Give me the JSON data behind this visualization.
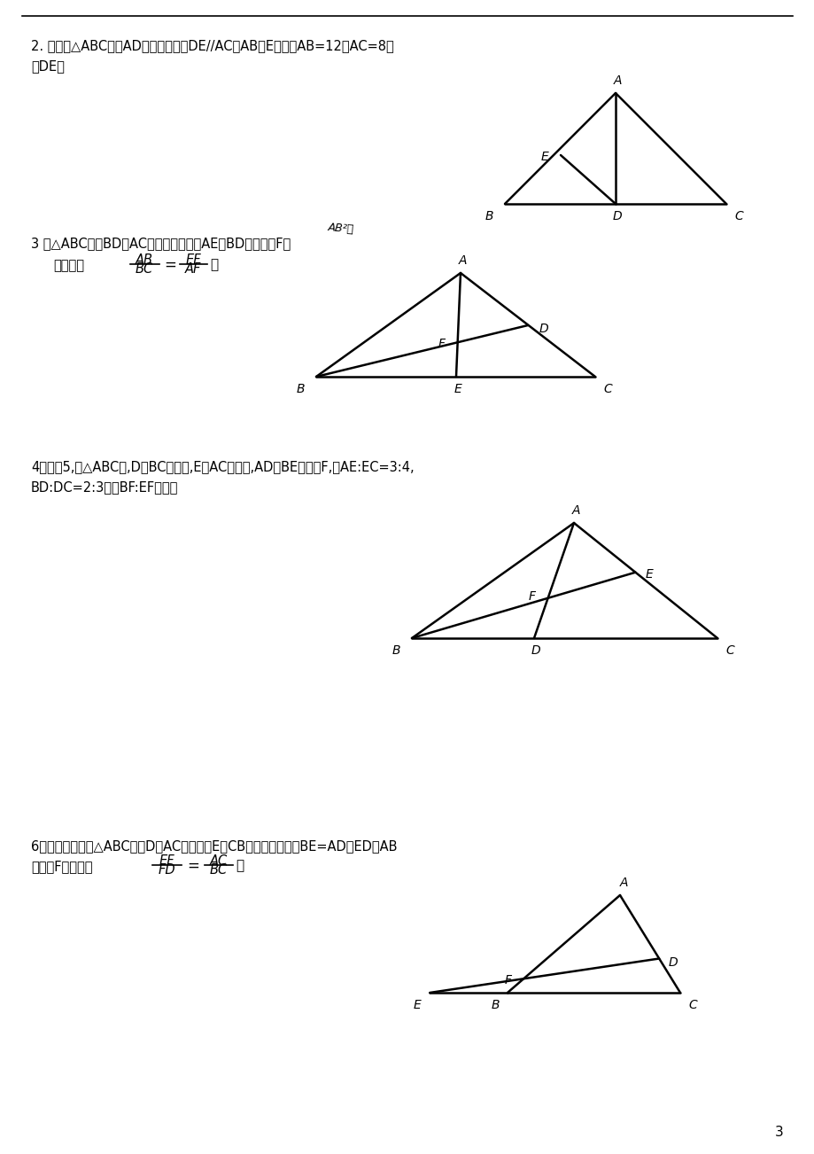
{
  "bg_color": "#ffffff",
  "page_number": "3",
  "p2_text1": "2. 如图，△ABC中，AD是角平分线，DE//AC交AB于E，已知AB=12，AC=8，",
  "p2_text2": "求DE。",
  "p3_text1": "3 在△ABC中，BD是AC边上的中线，且AE与BD相交于点F，",
  "p3_text2": "试说明：",
  "p3_formula_num": "AB",
  "p3_formula_den": "BC",
  "p3_formula_num2": "EF",
  "p3_formula_den2": "AF",
  "p3_annot": "AB²叶",
  "p4_text1": "4、如图5,在△ABC中,D是BC上的点,E是AC上的点,AD与BE交于点F,若AE:EC=3:4,",
  "p4_text2": "BD:DC=2:3，求BF:EF的值。",
  "p6_text1": "6、如图，已知在△ABC中，D为AC上一点，E为CB延长线上一点，BE=AD，ED和AB",
  "p6_text2": "相交于F。求证：",
  "p6_formula_num": "EF",
  "p6_formula_den": "FD",
  "p6_formula_num2": "AC",
  "p6_formula_den2": "BC"
}
